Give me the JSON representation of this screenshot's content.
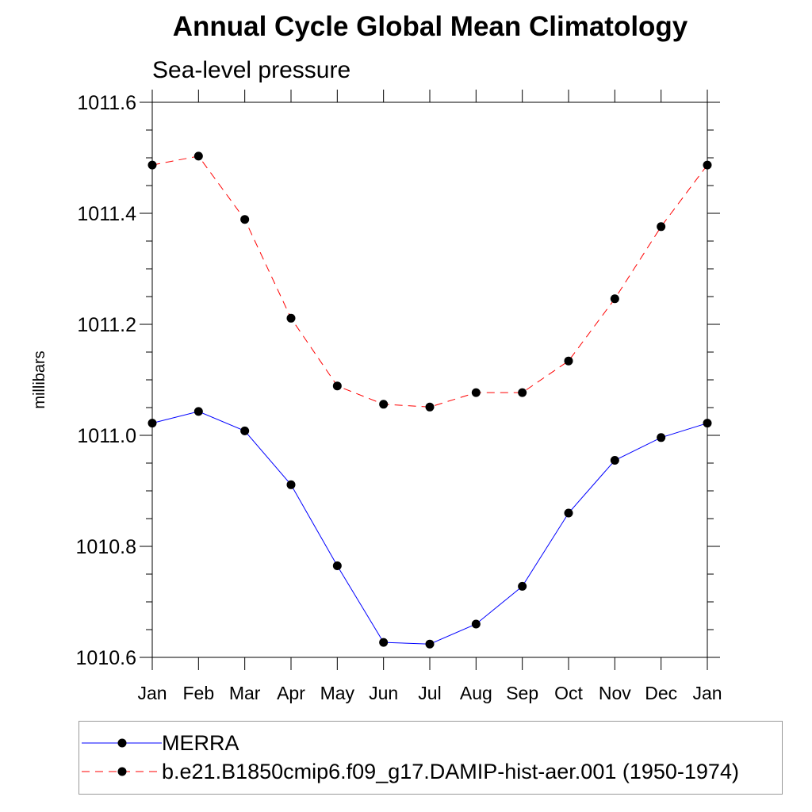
{
  "chart_data": {
    "type": "line",
    "title": "Annual Cycle Global Mean Climatology",
    "subtitle": "Sea-level pressure",
    "ylabel": "millibars",
    "xlabel": "",
    "categories": [
      "Jan",
      "Feb",
      "Mar",
      "Apr",
      "May",
      "Jun",
      "Jul",
      "Aug",
      "Sep",
      "Oct",
      "Nov",
      "Dec",
      "Jan"
    ],
    "ylim": [
      1010.6,
      1011.6
    ],
    "yticks": [
      "1010.6",
      "1010.8",
      "1011.0",
      "1011.2",
      "1011.4",
      "1011.6"
    ],
    "grid": false,
    "legend_position": "bottom",
    "series": [
      {
        "name": "MERRA",
        "color": "#0000ff",
        "style": "solid",
        "marker": "filled-circle",
        "values": [
          1011.022,
          1011.043,
          1011.008,
          1010.911,
          1010.765,
          1010.627,
          1010.624,
          1010.66,
          1010.728,
          1010.86,
          1010.955,
          1010.996,
          1011.022
        ]
      },
      {
        "name": "b.e21.B1850cmip6.f09_g17.DAMIP-hist-aer.001 (1950-1974)",
        "color": "#ff0000",
        "style": "dashed",
        "marker": "filled-circle",
        "values": [
          1011.487,
          1011.503,
          1011.389,
          1011.211,
          1011.089,
          1011.056,
          1011.051,
          1011.077,
          1011.077,
          1011.134,
          1011.246,
          1011.376,
          1011.487
        ]
      }
    ]
  }
}
